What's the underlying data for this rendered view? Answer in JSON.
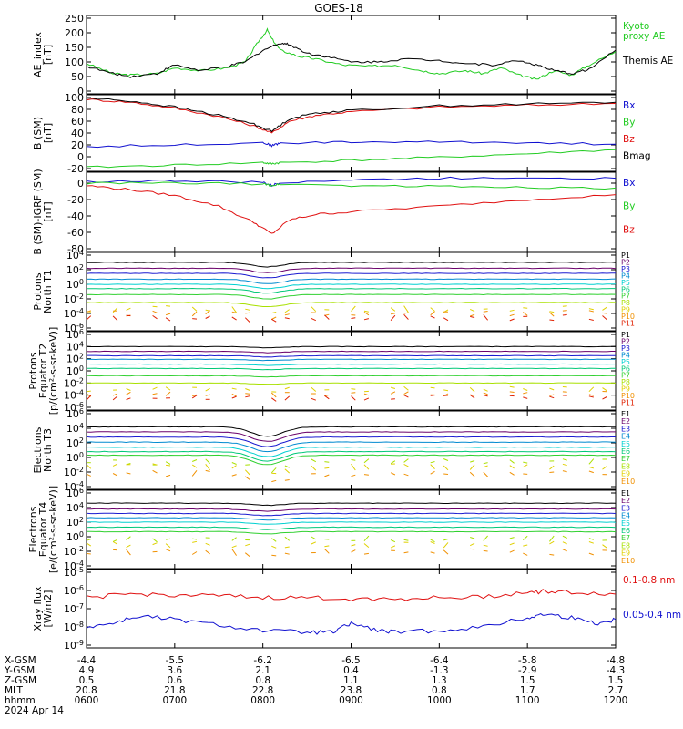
{
  "title": "GOES-18",
  "colors": {
    "black": "#000000",
    "red": "#e01010",
    "green": "#22cc22",
    "blue": "#1010d0",
    "p_ladder": [
      "#000000",
      "#6a006a",
      "#1a1ad0",
      "#008ad0",
      "#00d0d0",
      "#00c878",
      "#30d030",
      "#a8e000",
      "#e0d000",
      "#f09000",
      "#e02000"
    ]
  },
  "chart_data": [
    {
      "id": "ae",
      "type": "line",
      "ylabel": [
        "AE_index",
        "[nT]"
      ],
      "ylim": [
        0,
        250
      ],
      "yticks": [
        "250",
        "200",
        "150",
        "100",
        "50",
        "0"
      ],
      "series": [
        {
          "name": "Kyoto proxy AE",
          "legend": [
            "Kyoto",
            "proxy AE"
          ],
          "color": "green",
          "x": [
            0,
            0.3,
            0.5,
            0.8,
            1.0,
            1.3,
            1.6,
            1.8,
            1.95,
            2.05,
            2.1,
            2.2,
            2.4,
            2.6,
            2.9,
            3.2,
            3.5,
            3.8,
            4.0,
            4.3,
            4.5,
            4.7,
            4.9,
            5.1,
            5.3,
            5.5,
            5.7,
            6.0
          ],
          "y": [
            95,
            60,
            55,
            60,
            80,
            70,
            80,
            100,
            170,
            210,
            180,
            140,
            120,
            110,
            90,
            85,
            90,
            70,
            60,
            70,
            60,
            80,
            55,
            40,
            70,
            55,
            90,
            135
          ]
        },
        {
          "name": "Themis AE",
          "legend": [
            "Themis AE"
          ],
          "color": "black",
          "x": [
            0,
            0.3,
            0.5,
            0.8,
            1.0,
            1.3,
            1.6,
            1.8,
            2.0,
            2.2,
            2.3,
            2.5,
            2.7,
            3.0,
            3.3,
            3.6,
            4.0,
            4.3,
            4.6,
            4.9,
            5.1,
            5.3,
            5.5,
            5.7,
            6.0
          ],
          "y": [
            85,
            60,
            50,
            60,
            90,
            70,
            85,
            100,
            140,
            165,
            160,
            130,
            120,
            100,
            100,
            110,
            105,
            95,
            90,
            105,
            90,
            70,
            60,
            75,
            140
          ]
        }
      ]
    },
    {
      "id": "bsm",
      "type": "line",
      "ylabel": [
        "B (SM)",
        "[nT]"
      ],
      "ylim": [
        -20,
        100
      ],
      "yticks": [
        "100",
        "80",
        "60",
        "40",
        "20",
        "0",
        "-20"
      ],
      "series": [
        {
          "name": "Bx",
          "legend": [
            "Bx"
          ],
          "color": "blue",
          "x": [
            0,
            1,
            2,
            2.1,
            2.2,
            3,
            4,
            5,
            6
          ],
          "y": [
            17,
            20,
            24,
            19,
            23,
            25,
            25,
            24,
            21
          ]
        },
        {
          "name": "By",
          "legend": [
            "By"
          ],
          "color": "green",
          "x": [
            0,
            1,
            2,
            2.1,
            2.2,
            3,
            4,
            5,
            6
          ],
          "y": [
            -18,
            -14,
            -10,
            -12,
            -10,
            -6,
            -1,
            5,
            12
          ]
        },
        {
          "name": "Bz",
          "legend": [
            "Bz"
          ],
          "color": "red",
          "x": [
            0,
            0.5,
            1,
            1.5,
            1.9,
            2.1,
            2.3,
            2.6,
            3,
            4,
            5,
            6
          ],
          "y": [
            97,
            92,
            82,
            68,
            52,
            40,
            60,
            70,
            76,
            84,
            87,
            90
          ]
        },
        {
          "name": "Bmag",
          "legend": [
            "Bmag"
          ],
          "color": "black",
          "x": [
            0,
            0.5,
            1,
            1.5,
            1.9,
            2.1,
            2.3,
            2.6,
            3,
            4,
            5,
            6
          ],
          "y": [
            99,
            94,
            84,
            70,
            55,
            43,
            64,
            74,
            78,
            86,
            89,
            92
          ]
        }
      ]
    },
    {
      "id": "bdiff",
      "type": "line",
      "ylabel": [
        "B (SM)-IGRF (SM)",
        "[nT]"
      ],
      "ylim": [
        -80,
        10
      ],
      "yticks": [
        "0",
        "-20",
        "-40",
        "-60",
        "-80"
      ],
      "series": [
        {
          "name": "Bx",
          "legend": [
            "Bx"
          ],
          "color": "blue",
          "x": [
            0,
            1,
            2,
            2.1,
            2.2,
            3,
            4,
            5,
            6
          ],
          "y": [
            2,
            3,
            1,
            -3,
            1,
            4,
            6,
            7,
            6
          ]
        },
        {
          "name": "By",
          "legend": [
            "By"
          ],
          "color": "green",
          "x": [
            0,
            1,
            2,
            2.1,
            2.2,
            3,
            4,
            5,
            6
          ],
          "y": [
            0,
            0,
            -1,
            -3,
            -1,
            -3,
            -4,
            -5,
            -6
          ]
        },
        {
          "name": "Bz",
          "legend": [
            "Bz"
          ],
          "color": "red",
          "x": [
            0,
            0.5,
            1,
            1.5,
            1.9,
            2.1,
            2.3,
            2.6,
            3,
            4,
            5,
            6
          ],
          "y": [
            -3,
            -8,
            -15,
            -28,
            -48,
            -62,
            -45,
            -38,
            -35,
            -28,
            -20,
            -14
          ]
        }
      ]
    },
    {
      "id": "pn",
      "type": "line",
      "yscale": "log",
      "ylog": [
        -6,
        4
      ],
      "ylabel": [
        "Protons",
        "North T1"
      ],
      "channels": [
        "P1",
        "P2",
        "P3",
        "P4",
        "P5",
        "P6",
        "P7",
        "P8",
        "P9",
        "P10",
        "P11"
      ],
      "levels": [
        3,
        2.2,
        1.5,
        0.7,
        0,
        -0.6,
        -1.4,
        -2.5,
        -3.4,
        -4.0,
        -4.6
      ],
      "dip_depth": 0.6,
      "yticks": [
        "10^4",
        "10^2",
        "10^0",
        "10^-2",
        "10^-4",
        "10^-6"
      ]
    },
    {
      "id": "pe",
      "type": "line",
      "yscale": "log",
      "ylog": [
        -6,
        6
      ],
      "ylabel": [
        "Protons",
        "Equator T2",
        "[p/(cm²-s-sr-keV)]"
      ],
      "channels": [
        "P1",
        "P2",
        "P3",
        "P4",
        "P5",
        "P6",
        "P7",
        "P8",
        "P9",
        "P10",
        "P11"
      ],
      "levels": [
        4.0,
        3.2,
        2.5,
        1.9,
        1.1,
        0.4,
        -0.8,
        -2.0,
        -3.0,
        -3.8,
        -4.4
      ],
      "dip_depth": 0.2,
      "yticks": [
        "10^6",
        "10^4",
        "10^2",
        "10^0",
        "10^-2",
        "10^-4",
        "10^-6"
      ]
    },
    {
      "id": "en",
      "type": "line",
      "yscale": "log",
      "ylog": [
        -4,
        6
      ],
      "ylabel": [
        "Electrons",
        "North T3"
      ],
      "channels": [
        "E1",
        "E2",
        "E3",
        "E4",
        "E5",
        "E6",
        "E7",
        "E8",
        "E9",
        "E10"
      ],
      "levels": [
        4.2,
        3.5,
        2.8,
        2.1,
        1.4,
        0.8,
        0.3,
        -0.6,
        -1.3,
        -2.2
      ],
      "dip_depth": 1.3,
      "yticks": [
        "10^6",
        "10^4",
        "10^2",
        "10^0",
        "10^-2",
        "10^-4"
      ]
    },
    {
      "id": "ee",
      "type": "line",
      "yscale": "log",
      "ylog": [
        -4,
        6
      ],
      "ylabel": [
        "Electrons",
        "Equator T4",
        "[e/(cm²-s-sr-keV)]"
      ],
      "channels": [
        "E1",
        "E2",
        "E3",
        "E4",
        "E5",
        "E6",
        "E7",
        "E8",
        "E9",
        "E10"
      ],
      "levels": [
        4.6,
        3.8,
        3.2,
        2.6,
        2.0,
        1.3,
        0.7,
        -0.3,
        -1.1,
        -2.1
      ],
      "dip_depth": 0.3,
      "yticks": [
        "10^6",
        "10^4",
        "10^2",
        "10^0",
        "10^-2",
        "10^-4"
      ]
    },
    {
      "id": "xray",
      "type": "line",
      "yscale": "log",
      "ylog": [
        -9,
        -5
      ],
      "ylabel": [
        "Xray flux",
        "[W/m2]"
      ],
      "yticks": [
        "10^-5",
        "10^-6",
        "10^-7",
        "10^-8",
        "10^-9"
      ],
      "series": [
        {
          "name": "0.1-0.8 nm",
          "legend": [
            "0.1-0.8 nm"
          ],
          "color": "red",
          "x": [
            0,
            0.5,
            1,
            1.5,
            2,
            2.5,
            3,
            3.5,
            4,
            4.5,
            5,
            5.2,
            5.5,
            6
          ],
          "y": [
            -6.4,
            -6.2,
            -6.25,
            -6.3,
            -6.4,
            -6.4,
            -6.45,
            -6.45,
            -6.4,
            -6.35,
            -6.1,
            -6.05,
            -6.1,
            -6.2
          ]
        },
        {
          "name": "0.05-0.4 nm",
          "legend": [
            "0.05-0.4 nm"
          ],
          "color": "blue",
          "x": [
            0,
            0.3,
            0.6,
            1,
            1.5,
            2,
            2.5,
            2.8,
            3,
            3.3,
            3.5,
            4,
            4.5,
            5,
            5.2,
            5.5,
            5.8,
            6
          ],
          "y": [
            -8.0,
            -7.8,
            -7.4,
            -7.6,
            -7.9,
            -8.2,
            -8.3,
            -8.3,
            -7.8,
            -8.2,
            -8.3,
            -8.2,
            -8.0,
            -7.5,
            -7.3,
            -7.5,
            -7.8,
            -7.6
          ]
        }
      ]
    }
  ],
  "footer": {
    "row_labels": [
      "X-GSM",
      "Y-GSM",
      "Z-GSM",
      "MLT",
      "hhmm"
    ],
    "date": "2024 Apr 14",
    "columns": [
      [
        "-4.4",
        "4.9",
        "0.5",
        "20.8",
        "0600"
      ],
      [
        "-5.5",
        "3.6",
        "0.6",
        "21.8",
        "0700"
      ],
      [
        "-6.2",
        "2.1",
        "0.8",
        "22.8",
        "0800"
      ],
      [
        "-6.5",
        "0.4",
        "1.1",
        "23.8",
        "0900"
      ],
      [
        "-6.4",
        "-1.3",
        "1.3",
        "0.8",
        "1000"
      ],
      [
        "-5.8",
        "-2.9",
        "1.5",
        "1.7",
        "1100"
      ],
      [
        "-4.8",
        "-4.3",
        "1.5",
        "2.7",
        "1200"
      ]
    ]
  }
}
